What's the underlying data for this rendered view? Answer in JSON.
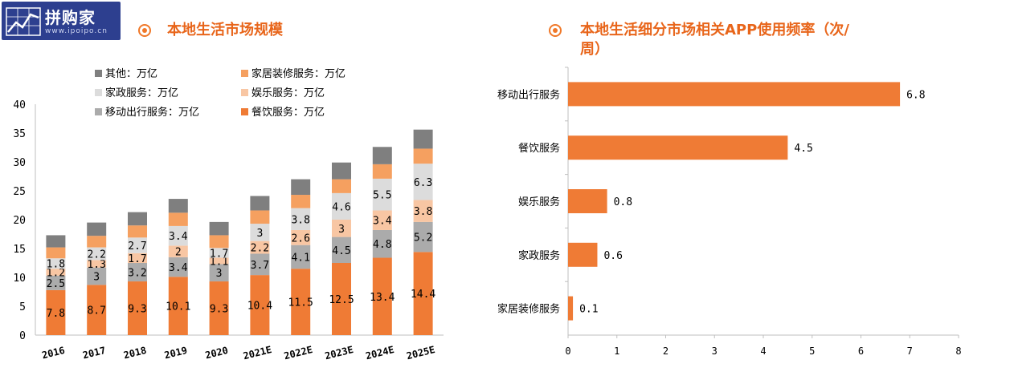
{
  "logo": {
    "name": "拼购家",
    "url": "www.ipoipo.cn"
  },
  "left_title": "本地生活市场规模",
  "right_title_line1": "本地生活细分市场相关APP使用频率（次/",
  "right_title_line2": "周）",
  "colors": {
    "catering": "#ef7b35",
    "mobility": "#ababab",
    "entertainment": "#f8c6a3",
    "housekeeping": "#dcdcdc",
    "home_decoration": "#f5a060",
    "other": "#7f7f7f",
    "hbar": "#ef7b35"
  },
  "chart_data": [
    {
      "type": "bar",
      "stacked": true,
      "categories": [
        "2016",
        "2017",
        "2018",
        "2019",
        "2020",
        "2021E",
        "2022E",
        "2023E",
        "2024E",
        "2025E"
      ],
      "ylim": [
        0,
        40
      ],
      "yticks": [
        0,
        5,
        10,
        15,
        20,
        25,
        30,
        35,
        40
      ],
      "legend": "top-left",
      "series": [
        {
          "name": "餐饮服务：万亿",
          "key": "catering",
          "values": [
            7.8,
            8.7,
            9.3,
            10.1,
            9.3,
            10.4,
            11.5,
            12.5,
            13.4,
            14.4
          ],
          "labels": [
            "7.8",
            "8.7",
            "9.3",
            "10.1",
            "9.3",
            "10.4",
            "11.5",
            "12.5",
            "13.4",
            "14.4"
          ]
        },
        {
          "name": "移动出行服务：万亿",
          "key": "mobility",
          "values": [
            2.5,
            3,
            3.2,
            3.4,
            3,
            3.7,
            4.1,
            4.5,
            4.8,
            5.2
          ],
          "labels": [
            "2.5",
            "3",
            "3.2",
            "3.4",
            "3",
            "3.7",
            "4.1",
            "4.5",
            "4.8",
            "5.2"
          ]
        },
        {
          "name": "娱乐服务：万亿",
          "key": "entertainment",
          "values": [
            1.2,
            1.3,
            1.7,
            2,
            1.1,
            2.2,
            2.6,
            3,
            3.4,
            3.8
          ],
          "labels": [
            "1.2",
            "1.3",
            "1.7",
            "2",
            "1.1",
            "2.2",
            "2.6",
            "3",
            "3.4",
            "3.8"
          ]
        },
        {
          "name": "家政服务：万亿",
          "key": "housekeeping",
          "values": [
            1.8,
            2.2,
            2.7,
            3.4,
            1.7,
            3,
            3.8,
            4.6,
            5.5,
            6.3
          ],
          "labels": [
            "1.8",
            "2.2",
            "2.7",
            "3.4",
            "1.7",
            "3",
            "3.8",
            "4.6",
            "5.5",
            "6.3"
          ]
        },
        {
          "name": "家居装修服务：万亿",
          "key": "home_decoration",
          "values": [
            1.9,
            2,
            2.1,
            2.3,
            2.2,
            2.3,
            2.3,
            2.4,
            2.5,
            2.6
          ],
          "labels": [
            "",
            "",
            "",
            "",
            "",
            "",
            "",
            "",
            "",
            ""
          ]
        },
        {
          "name": "其他：万亿",
          "key": "other",
          "values": [
            2.1,
            2.3,
            2.3,
            2.4,
            2.3,
            2.5,
            2.7,
            2.9,
            3,
            3.3
          ],
          "labels": [
            "",
            "",
            "",
            "",
            "",
            "",
            "",
            "",
            "",
            ""
          ]
        }
      ]
    },
    {
      "type": "bar",
      "orientation": "horizontal",
      "categories": [
        "移动出行服务",
        "餐饮服务",
        "娱乐服务",
        "家政服务",
        "家居装修服务"
      ],
      "values": [
        6.8,
        4.5,
        0.8,
        0.6,
        0.1
      ],
      "labels": [
        "6.8",
        "4.5",
        "0.8",
        "0.6",
        "0.1"
      ],
      "xlim": [
        0,
        8
      ],
      "xticks": [
        0,
        1,
        2,
        3,
        4,
        5,
        6,
        7,
        8
      ]
    }
  ]
}
